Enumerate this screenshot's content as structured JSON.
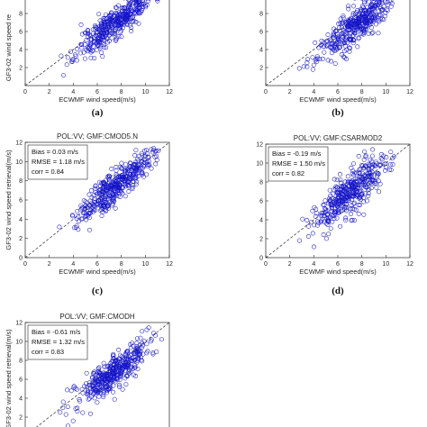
{
  "chart_data": [
    {
      "panel_tag": "(a)",
      "type": "scatter",
      "title": "",
      "xlabel": "ECWMF wind speed(m/s)",
      "ylabel": "GF3-02 wind speed re",
      "xlim": [
        0,
        12
      ],
      "ylim": [
        0,
        12
      ],
      "xticks": [
        "0",
        "2",
        "4",
        "6",
        "8",
        "10",
        "12"
      ],
      "yticks": [
        "2",
        "4",
        "6",
        "8"
      ],
      "stats": [],
      "cloud": {
        "center": [
          7.5,
          7.0
        ],
        "slope": 1.0,
        "spread": 0.9,
        "length": 3.2,
        "n": 420,
        "seed": 11
      }
    },
    {
      "panel_tag": "(b)",
      "type": "scatter",
      "title": "",
      "xlabel": "ECWMF wind speed(m/s)",
      "ylabel": "",
      "xlim": [
        0,
        12
      ],
      "ylim": [
        0,
        12
      ],
      "xticks": [
        "0",
        "2",
        "4",
        "6",
        "8",
        "10",
        "12"
      ],
      "yticks": [
        "2",
        "4",
        "6",
        "8"
      ],
      "stats": [],
      "cloud": {
        "center": [
          7.5,
          6.7
        ],
        "slope": 1.0,
        "spread": 1.0,
        "length": 3.2,
        "n": 420,
        "seed": 23
      }
    },
    {
      "panel_tag": "(c)",
      "type": "scatter",
      "title": "POL:VV; GMF:CMOD5.N",
      "xlabel": "ECWMF wind speed(m/s)",
      "ylabel": "GF3-02 wind speed retrieval(m/s)",
      "xlim": [
        0,
        12
      ],
      "ylim": [
        0,
        12
      ],
      "xticks": [
        "0",
        "2",
        "4",
        "6",
        "8",
        "10",
        "12"
      ],
      "yticks": [
        "0",
        "2",
        "4",
        "6",
        "8",
        "10",
        "12"
      ],
      "stats": [
        "Bias = 0.03 m/s",
        "RMSE = 1.18 m/s",
        "corr = 0.84"
      ],
      "cloud": {
        "center": [
          7.5,
          7.5
        ],
        "slope": 1.0,
        "spread": 0.85,
        "length": 3.0,
        "n": 420,
        "seed": 37
      }
    },
    {
      "panel_tag": "(d)",
      "type": "scatter",
      "title": "POL:VV; GMF:CSARMOD2",
      "xlabel": "ECWMF wind speed(m/s)",
      "ylabel": "",
      "xlim": [
        0,
        12
      ],
      "ylim": [
        0,
        12
      ],
      "xticks": [
        "0",
        "2",
        "4",
        "6",
        "8",
        "10",
        "12"
      ],
      "yticks": [
        "0",
        "2",
        "4",
        "6",
        "8",
        "10",
        "12"
      ],
      "stats": [
        "Bias = -0.19 m/s",
        "RMSE = 1.50 m/s",
        "corr = 0.82"
      ],
      "cloud": {
        "center": [
          7.2,
          7.0
        ],
        "slope": 1.05,
        "spread": 1.15,
        "length": 3.3,
        "n": 420,
        "seed": 53
      }
    },
    {
      "panel_tag": "",
      "type": "scatter",
      "title": "POL:VV; GMF:CMODH",
      "xlabel": "",
      "ylabel": "GF3-02 wind speed retrieval(m/s)",
      "xlim": [
        0,
        12
      ],
      "ylim": [
        0,
        12
      ],
      "xticks": [],
      "yticks": [
        "2",
        "4",
        "6",
        "8",
        "10",
        "12"
      ],
      "stats": [
        "Bias = -0.61 m/s",
        "RMSE = 1.32 m/s",
        "corr = 0.83"
      ],
      "cloud": {
        "center": [
          7.3,
          6.6
        ],
        "slope": 0.95,
        "spread": 0.9,
        "length": 3.1,
        "n": 420,
        "seed": 71
      }
    }
  ],
  "colors": {
    "marker": "#1414c8",
    "reference_line": "#444444",
    "axis": "#262626"
  }
}
